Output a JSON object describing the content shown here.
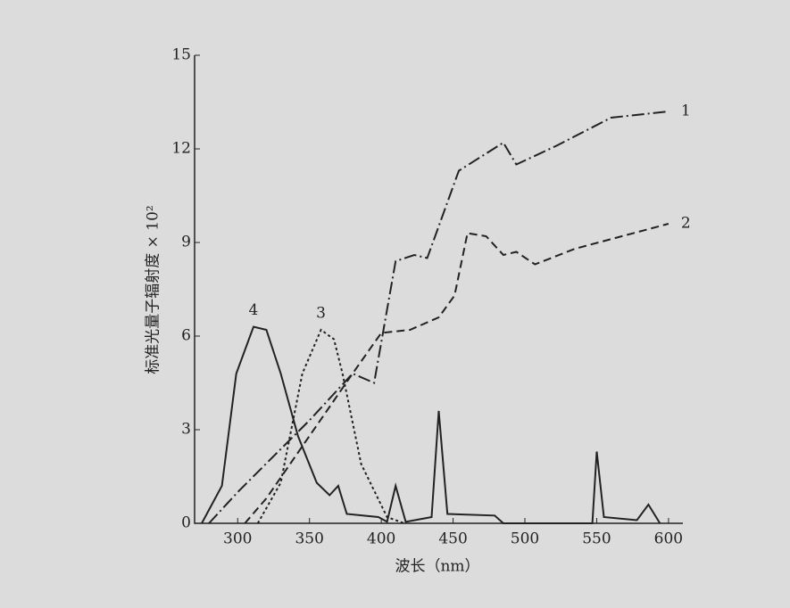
{
  "chart_data": {
    "type": "line",
    "x_label": "波长（nm）",
    "y_label": "标准光量子辐射度 × 10²",
    "xlim": [
      270,
      610
    ],
    "xticks": [
      300,
      350,
      400,
      450,
      500,
      550,
      600
    ],
    "ylim": [
      0,
      15
    ],
    "yticks": [
      0,
      3,
      6,
      9,
      12,
      15
    ],
    "grid": false,
    "series": [
      {
        "name": "1",
        "color": "#222222",
        "style": "dashdot",
        "x": [
          280,
          300,
          350,
          380,
          395,
          410,
          423,
          432,
          454,
          485,
          494,
          522,
          560,
          600
        ],
        "values": [
          0,
          1.0,
          3.3,
          4.8,
          4.5,
          8.4,
          8.6,
          8.5,
          11.3,
          12.2,
          11.5,
          12.1,
          13.0,
          13.2
        ]
      },
      {
        "name": "2",
        "color": "#222222",
        "style": "dashed",
        "x": [
          305,
          320,
          350,
          380,
          400,
          420,
          440,
          451,
          460,
          473,
          485,
          494,
          507,
          535,
          600
        ],
        "values": [
          0,
          0.8,
          2.8,
          4.8,
          6.1,
          6.2,
          6.6,
          7.3,
          9.3,
          9.2,
          8.6,
          8.7,
          8.3,
          8.8,
          9.6
        ]
      },
      {
        "name": "3",
        "color": "#222222",
        "style": "dotted",
        "x": [
          314,
          330,
          345,
          358,
          367,
          373,
          386,
          404,
          416
        ],
        "values": [
          0,
          1.3,
          4.8,
          6.2,
          5.9,
          4.8,
          1.9,
          0.2,
          0
        ]
      },
      {
        "name": "4",
        "color": "#222222",
        "style": "solid",
        "x": [
          275,
          289,
          299,
          311,
          320,
          330,
          342,
          355,
          364,
          370,
          376,
          398,
          404,
          410,
          417,
          435,
          440,
          446,
          479,
          485,
          547,
          550,
          555,
          578,
          586,
          594
        ],
        "values": [
          0,
          1.2,
          4.8,
          6.3,
          6.2,
          4.8,
          2.8,
          1.3,
          0.9,
          1.2,
          0.3,
          0.2,
          0.05,
          1.2,
          0.05,
          0.2,
          3.6,
          0.3,
          0.25,
          0,
          0,
          2.3,
          0.2,
          0.1,
          0.6,
          0
        ]
      }
    ]
  }
}
